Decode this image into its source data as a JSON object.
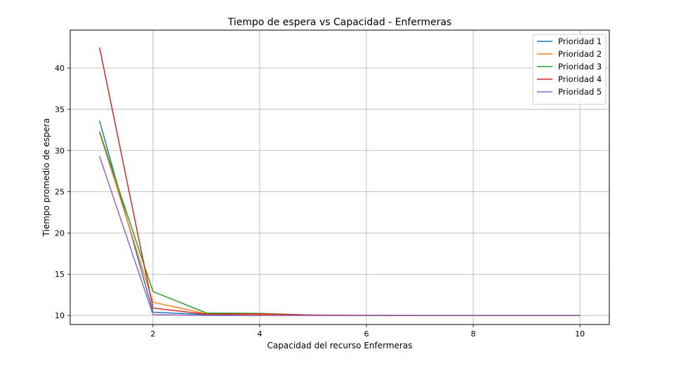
{
  "chart_data": {
    "type": "line",
    "title": "Tiempo de espera vs Capacidad - Enfermeras",
    "xlabel": "Capacidad del recurso Enfermeras",
    "ylabel": "Tiempo promedio de espera",
    "xlim": [
      0.45,
      10.55
    ],
    "ylim": [
      8.9,
      44.6
    ],
    "xticks": [
      2,
      4,
      6,
      8,
      10
    ],
    "yticks": [
      10,
      15,
      20,
      25,
      30,
      35,
      40
    ],
    "grid": true,
    "legend_position": "top-right",
    "x": [
      1,
      2,
      3,
      4,
      5,
      6,
      7,
      8,
      9,
      10
    ],
    "series": [
      {
        "name": "Prioridad 1",
        "color": "#1f77b4",
        "values": [
          33.6,
          10.4,
          10.1,
          10.05,
          10.02,
          10.0,
          10.0,
          10.0,
          10.0,
          10.0
        ]
      },
      {
        "name": "Prioridad 2",
        "color": "#ff7f0e",
        "values": [
          32.2,
          11.6,
          10.2,
          10.1,
          10.03,
          10.01,
          10.0,
          10.0,
          10.0,
          10.0
        ]
      },
      {
        "name": "Prioridad 3",
        "color": "#2ca02c",
        "values": [
          32.3,
          12.9,
          10.3,
          10.25,
          10.05,
          10.02,
          10.0,
          10.0,
          10.0,
          10.0
        ]
      },
      {
        "name": "Prioridad 4",
        "color": "#d62728",
        "values": [
          42.5,
          10.9,
          10.15,
          10.2,
          10.05,
          10.02,
          10.0,
          10.0,
          10.0,
          10.0
        ]
      },
      {
        "name": "Prioridad 5",
        "color": "#9467bd",
        "values": [
          29.3,
          10.1,
          10.0,
          10.0,
          10.0,
          10.0,
          10.0,
          10.0,
          10.0,
          10.0
        ]
      }
    ]
  }
}
